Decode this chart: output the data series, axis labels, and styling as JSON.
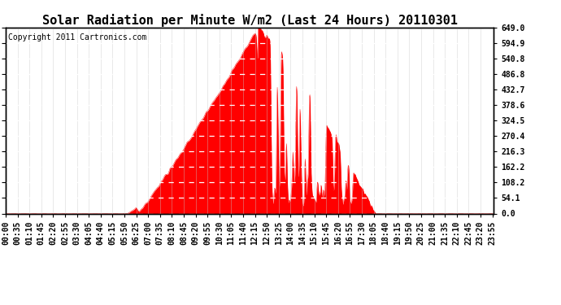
{
  "title": "Solar Radiation per Minute W/m2 (Last 24 Hours) 20110301",
  "copyright": "Copyright 2011 Cartronics.com",
  "yticks": [
    0.0,
    54.1,
    108.2,
    162.2,
    216.3,
    270.4,
    324.5,
    378.6,
    432.7,
    486.8,
    540.8,
    594.9,
    649.0
  ],
  "ymin": 0.0,
  "ymax": 649.0,
  "fill_color": "#FF0000",
  "background_color": "#FFFFFF",
  "plot_bg_color": "#FFFFFF",
  "grid_color_h": "#FFFFFF",
  "grid_color_v": "#C8C8C8",
  "title_fontsize": 11,
  "copyright_fontsize": 7,
  "tick_label_fontsize": 7,
  "n_minutes": 1440,
  "sunrise_minute": 388,
  "sunset_minute": 1090,
  "peak_minute": 745,
  "peak_value": 649.0,
  "tick_step": 35
}
